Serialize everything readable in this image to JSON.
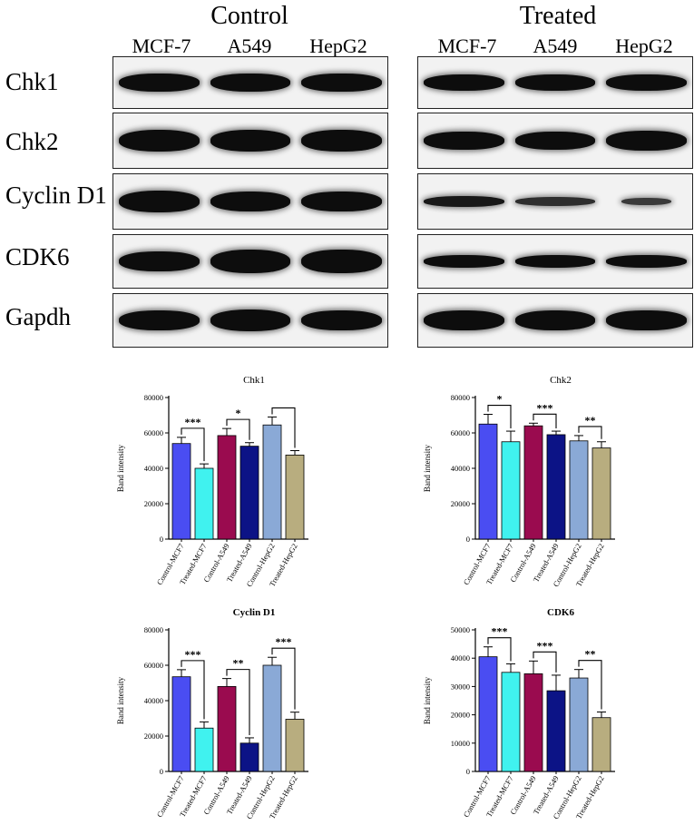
{
  "blot": {
    "groups": [
      {
        "title": "Control",
        "lanes": [
          "MCF-7",
          "A549",
          "HepG2"
        ]
      },
      {
        "title": "Treated",
        "lanes": [
          "MCF-7",
          "A549",
          "HepG2"
        ]
      }
    ],
    "proteins": [
      "Chk1",
      "Chk2",
      "Cyclin D1",
      "CDK6",
      "Gapdh"
    ]
  },
  "colors": [
    "#4a4df2",
    "#40f2ef",
    "#9a0b4f",
    "#0c1386",
    "#8aa9d6",
    "#b8ad7f"
  ],
  "chart_data": [
    {
      "type": "bar",
      "title": "Chk1",
      "title_bold": false,
      "ylabel": "Band intensity",
      "categories": [
        "Control-MCF7",
        "Treated-MCF7",
        "Control-A549",
        "Treated-A549",
        "Control-HepG2",
        "Treated-HepG2"
      ],
      "values": [
        54000,
        40000,
        58500,
        52500,
        64500,
        47500
      ],
      "errors": [
        3500,
        2500,
        4000,
        2000,
        4500,
        2500
      ],
      "ylim": [
        0,
        80000
      ],
      "yticks": [
        "0",
        "20000",
        "40000",
        "60000",
        "80000"
      ],
      "significance": [
        {
          "from": 0,
          "to": 1,
          "label": "***"
        },
        {
          "from": 2,
          "to": 3,
          "label": "*"
        },
        {
          "from": 4,
          "to": 5,
          "label": ""
        }
      ]
    },
    {
      "type": "bar",
      "title": "Chk2",
      "title_bold": false,
      "ylabel": "Band intensity",
      "categories": [
        "Control-MCF7",
        "Treated-MCF7",
        "Control-A549",
        "Treated-A549",
        "Control-HepG2",
        "Treated-HepG2"
      ],
      "values": [
        65000,
        55000,
        64000,
        59000,
        55500,
        51500
      ],
      "errors": [
        5500,
        6000,
        1500,
        2000,
        3000,
        3500
      ],
      "ylim": [
        0,
        80000
      ],
      "yticks": [
        "0",
        "20000",
        "40000",
        "60000",
        "80000"
      ],
      "significance": [
        {
          "from": 0,
          "to": 1,
          "label": "*"
        },
        {
          "from": 2,
          "to": 3,
          "label": "***"
        },
        {
          "from": 4,
          "to": 5,
          "label": "**"
        }
      ]
    },
    {
      "type": "bar",
      "title": "Cyclin D1",
      "title_bold": true,
      "ylabel": "Band intensity",
      "categories": [
        "Control-MCF7",
        "Treated-MCF7",
        "Control-A549",
        "Treated-A549",
        "Control-HepG2",
        "Treated-HepG2"
      ],
      "values": [
        53500,
        24500,
        48000,
        16000,
        60000,
        29500
      ],
      "errors": [
        4000,
        3500,
        4500,
        3000,
        4500,
        4000
      ],
      "ylim": [
        0,
        80000
      ],
      "yticks": [
        "0",
        "20000",
        "40000",
        "60000",
        "80000"
      ],
      "significance": [
        {
          "from": 0,
          "to": 1,
          "label": "***"
        },
        {
          "from": 2,
          "to": 3,
          "label": "**"
        },
        {
          "from": 4,
          "to": 5,
          "label": "***"
        }
      ]
    },
    {
      "type": "bar",
      "title": "CDK6",
      "title_bold": true,
      "ylabel": "Band intensity",
      "categories": [
        "Control-MCF7",
        "Treated-MCF7",
        "Control-A549",
        "Treated-A549",
        "Control-HepG2",
        "Treated-HepG2"
      ],
      "values": [
        40500,
        35000,
        34500,
        28500,
        33000,
        19000
      ],
      "errors": [
        3500,
        3000,
        4500,
        5500,
        3000,
        2000
      ],
      "ylim": [
        0,
        50000
      ],
      "yticks": [
        "0",
        "10000",
        "20000",
        "30000",
        "40000",
        "50000"
      ],
      "significance": [
        {
          "from": 0,
          "to": 1,
          "label": "***"
        },
        {
          "from": 2,
          "to": 3,
          "label": "***"
        },
        {
          "from": 4,
          "to": 5,
          "label": "**"
        }
      ]
    }
  ]
}
